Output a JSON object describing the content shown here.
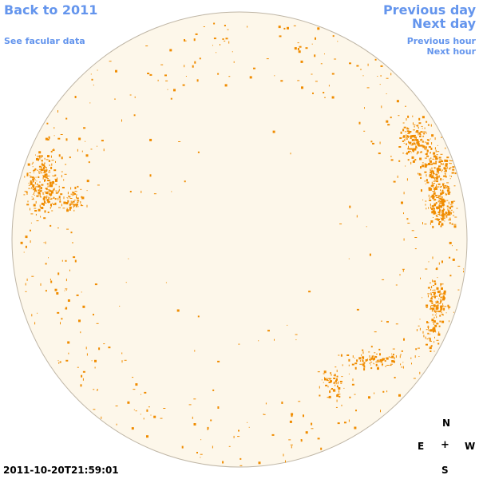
{
  "nav": {
    "back_label": "Back to 2011",
    "facular_label": "See facular data",
    "prev_day_label": "Previous day",
    "next_day_label": "Next day",
    "prev_hour_label": "Previous hour",
    "next_hour_label": "Next hour"
  },
  "compass": {
    "north": "N",
    "east": "E",
    "center": "+",
    "west": "W",
    "south": "S"
  },
  "timestamp": "2011-10-20T21:59:01",
  "colors": {
    "disk_fill": "#fdf7ea",
    "disk_outline": "#bfb6a6",
    "facula": "#f08c00",
    "link": "#6495ed"
  }
}
